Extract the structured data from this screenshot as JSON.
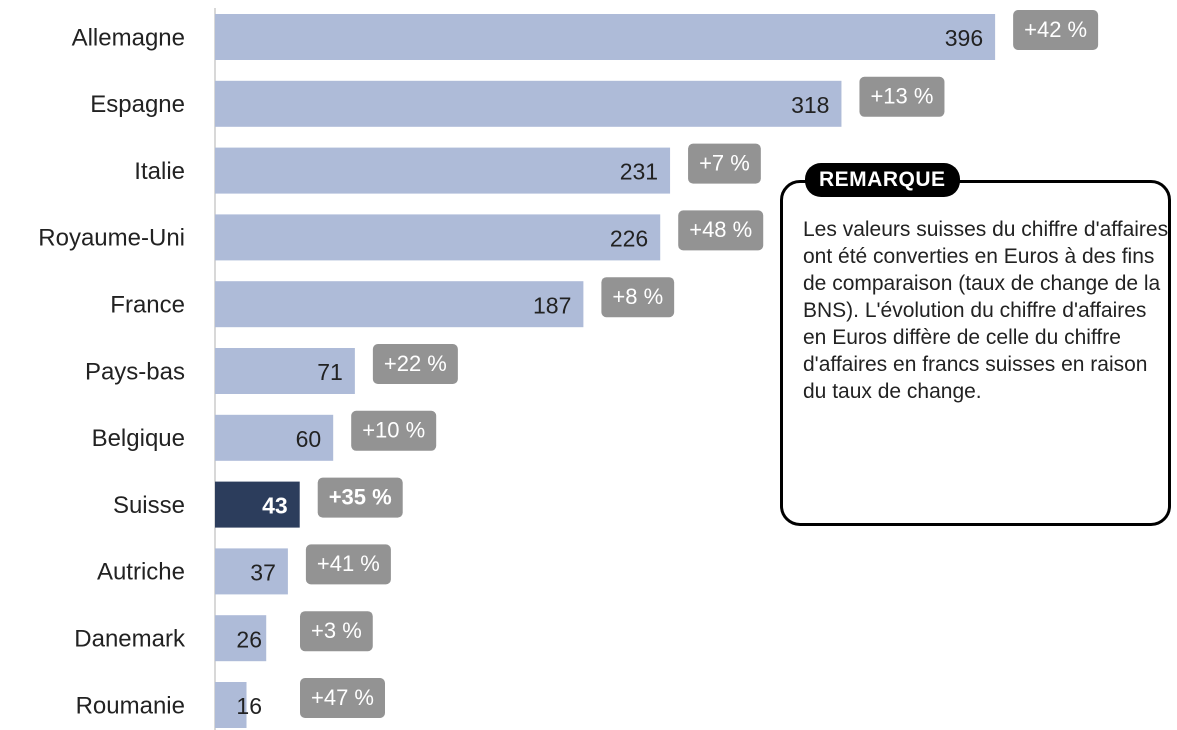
{
  "chart_data": {
    "type": "bar",
    "orientation": "horizontal",
    "categories": [
      "Allemagne",
      "Espagne",
      "Italie",
      "Royaume-Uni",
      "France",
      "Pays-bas",
      "Belgique",
      "Suisse",
      "Autriche",
      "Danemark",
      "Roumanie"
    ],
    "values": [
      396,
      318,
      231,
      226,
      187,
      71,
      60,
      43,
      37,
      26,
      16
    ],
    "colors": [
      "#aebbd8",
      "#aebbd8",
      "#aebbd8",
      "#aebbd8",
      "#aebbd8",
      "#aebbd8",
      "#aebbd8",
      "#2c3d5c",
      "#aebbd8",
      "#aebbd8",
      "#aebbd8"
    ],
    "xlim": [
      0,
      400
    ],
    "growth": {
      "values": [
        42,
        13,
        7,
        48,
        8,
        22,
        10,
        35,
        41,
        3,
        47
      ],
      "value_labels": [
        "+42 %",
        "+13 %",
        "+7 %",
        "+48 %",
        "+8 %",
        "+22 %",
        "+10 %",
        "+35 %",
        "+41 %",
        "+3 %",
        "+47 %"
      ],
      "color": "#939393"
    },
    "note": {
      "title": "REMARQUE",
      "text": "Les valeurs suisses du chiffre d'affaires ont été converties en Euros à des fins de comparaison (taux de change de la BNS). L'évolution du chiffre d'affaires en Euros diffère de celle du chiffre d'affaires en francs suisses en raison du taux de change."
    }
  }
}
